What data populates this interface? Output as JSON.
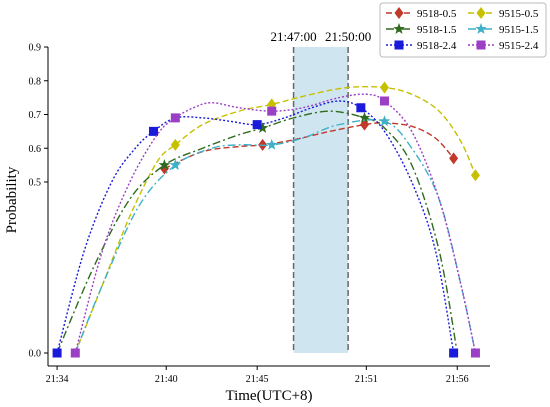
{
  "chart_data": {
    "type": "line",
    "xlabel": "Time(UTC+8)",
    "ylabel": "Probability",
    "x_ticks": [
      "21:34",
      "21:40",
      "21:45",
      "21:51",
      "21:56"
    ],
    "x_tick_minutes": [
      0,
      6,
      11,
      17,
      22
    ],
    "y_ticks": [
      "0.0",
      "0.5",
      "0.6",
      "0.7",
      "0.8",
      "0.9"
    ],
    "y_scale": "compressed",
    "y_ticks_values": [
      0.0,
      0.5,
      0.6,
      0.7,
      0.8,
      0.9
    ],
    "xlim_minutes": [
      -0.5,
      23.8
    ],
    "grid": false,
    "legend_position": "top-right",
    "highlight_window": {
      "start_label": "21:47:00",
      "end_label": "21:50:00",
      "start_minutes": 13.0,
      "end_minutes": 16.0,
      "color": "#cfe6f1"
    },
    "series": [
      {
        "name": "9518-0.5",
        "color": "#c0392b",
        "marker": "diamond",
        "dash": "6,3",
        "x": [
          5.9,
          11.3,
          16.9,
          21.8
        ],
        "y": [
          0.54,
          0.61,
          0.67,
          0.57
        ],
        "curve": [
          [
            5.9,
            0.54
          ],
          [
            8,
            0.59
          ],
          [
            10,
            0.605
          ],
          [
            11.3,
            0.61
          ],
          [
            13,
            0.625
          ],
          [
            15,
            0.65
          ],
          [
            16.9,
            0.67
          ],
          [
            18,
            0.675
          ],
          [
            19.5,
            0.665
          ],
          [
            20.8,
            0.63
          ],
          [
            21.8,
            0.57
          ]
        ]
      },
      {
        "name": "9515-0.5",
        "color": "#c7c000",
        "marker": "diamond",
        "dash": "6,3",
        "x": [
          6.5,
          11.8,
          18.0,
          23.0
        ],
        "y": [
          0.61,
          0.73,
          0.78,
          0.52
        ],
        "curve": [
          [
            1,
            0
          ],
          [
            2.5,
            0.2
          ],
          [
            4,
            0.4
          ],
          [
            5.5,
            0.56
          ],
          [
            6.5,
            0.61
          ],
          [
            8,
            0.67
          ],
          [
            10,
            0.71
          ],
          [
            11.8,
            0.73
          ],
          [
            14,
            0.76
          ],
          [
            16,
            0.78
          ],
          [
            18,
            0.78
          ],
          [
            19.5,
            0.76
          ],
          [
            21,
            0.71
          ],
          [
            22.2,
            0.62
          ],
          [
            23,
            0.52
          ]
        ]
      },
      {
        "name": "9518-1.5",
        "color": "#2e6b1f",
        "marker": "star",
        "dash": "8,3,2,3",
        "x": [
          5.9,
          11.3,
          16.9
        ],
        "y": [
          0.55,
          0.66,
          0.69
        ],
        "curve": [
          [
            0,
            0
          ],
          [
            2,
            0.25
          ],
          [
            4,
            0.45
          ],
          [
            5.9,
            0.55
          ],
          [
            8,
            0.6
          ],
          [
            10,
            0.64
          ],
          [
            11.3,
            0.66
          ],
          [
            13,
            0.69
          ],
          [
            15,
            0.71
          ],
          [
            16.9,
            0.69
          ],
          [
            18,
            0.66
          ],
          [
            19.5,
            0.55
          ],
          [
            21,
            0.3
          ],
          [
            22,
            0
          ]
        ]
      },
      {
        "name": "9515-1.5",
        "color": "#3fb0c9",
        "marker": "star",
        "dash": "8,3,2,3",
        "x": [
          6.5,
          11.8,
          18.0
        ],
        "y": [
          0.55,
          0.61,
          0.68
        ],
        "curve": [
          [
            1,
            0
          ],
          [
            2.5,
            0.2
          ],
          [
            4.5,
            0.43
          ],
          [
            6.5,
            0.55
          ],
          [
            8.5,
            0.6
          ],
          [
            10,
            0.61
          ],
          [
            11.8,
            0.61
          ],
          [
            13.5,
            0.63
          ],
          [
            15.5,
            0.67
          ],
          [
            18,
            0.68
          ],
          [
            19.5,
            0.6
          ],
          [
            21,
            0.45
          ],
          [
            22.2,
            0.2
          ],
          [
            23,
            0
          ]
        ]
      },
      {
        "name": "9518-2.4",
        "color": "#1a1adb",
        "marker": "square",
        "dash": "2,2",
        "x": [
          0,
          5.3,
          11.0,
          16.7,
          21.8
        ],
        "y": [
          0.0,
          0.65,
          0.67,
          0.72,
          0.0
        ],
        "curve": [
          [
            0,
            0
          ],
          [
            1.5,
            0.3
          ],
          [
            3,
            0.5
          ],
          [
            4.3,
            0.6
          ],
          [
            5.3,
            0.65
          ],
          [
            6.5,
            0.69
          ],
          [
            8,
            0.69
          ],
          [
            9.5,
            0.68
          ],
          [
            11,
            0.67
          ],
          [
            12.5,
            0.69
          ],
          [
            14,
            0.72
          ],
          [
            15.5,
            0.74
          ],
          [
            16.7,
            0.72
          ],
          [
            18,
            0.65
          ],
          [
            19.5,
            0.5
          ],
          [
            20.8,
            0.3
          ],
          [
            21.8,
            0
          ]
        ]
      },
      {
        "name": "9515-2.4",
        "color": "#9b3fc4",
        "marker": "square",
        "dash": "2,2",
        "x": [
          1.0,
          6.5,
          11.8,
          18.0,
          23.0
        ],
        "y": [
          0.0,
          0.69,
          0.71,
          0.74,
          0.0
        ],
        "curve": [
          [
            1,
            0
          ],
          [
            2.5,
            0.3
          ],
          [
            4,
            0.5
          ],
          [
            5.5,
            0.64
          ],
          [
            6.5,
            0.69
          ],
          [
            7.5,
            0.72
          ],
          [
            8.5,
            0.735
          ],
          [
            10,
            0.72
          ],
          [
            11.8,
            0.71
          ],
          [
            13.5,
            0.72
          ],
          [
            15.5,
            0.75
          ],
          [
            17,
            0.76
          ],
          [
            18,
            0.74
          ],
          [
            19.5,
            0.65
          ],
          [
            21,
            0.45
          ],
          [
            22.2,
            0.2
          ],
          [
            23,
            0
          ]
        ]
      }
    ]
  }
}
